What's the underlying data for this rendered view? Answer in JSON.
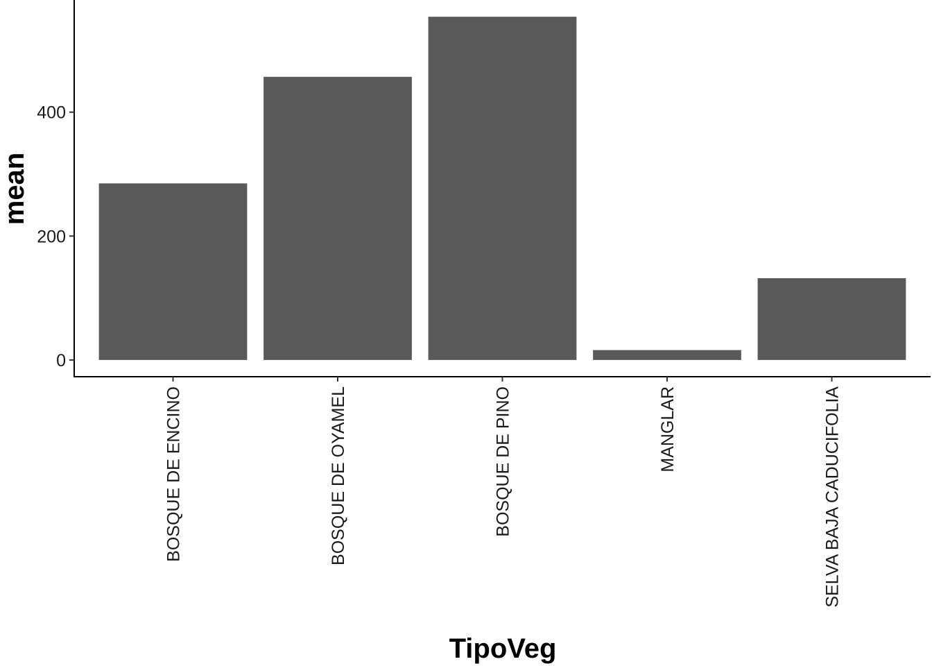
{
  "chart_data": {
    "type": "bar",
    "title": "",
    "xlabel": "TipoVeg",
    "ylabel": "mean",
    "categories": [
      "BOSQUE DE ENCINO",
      "BOSQUE DE OYAMEL",
      "BOSQUE DE PINO",
      "MANGLAR",
      "SELVA BAJA CADUCIFOLIA"
    ],
    "values": [
      285,
      457,
      554,
      16,
      132
    ],
    "ylim": [
      -27,
      581
    ],
    "yticks": [
      0,
      200,
      400
    ],
    "ytick_labels": [
      "0",
      "200",
      "400"
    ],
    "grid": false,
    "legend": "none",
    "colors": {
      "bar": "#595959",
      "axis": "#000000",
      "background": "#ffffff"
    }
  }
}
